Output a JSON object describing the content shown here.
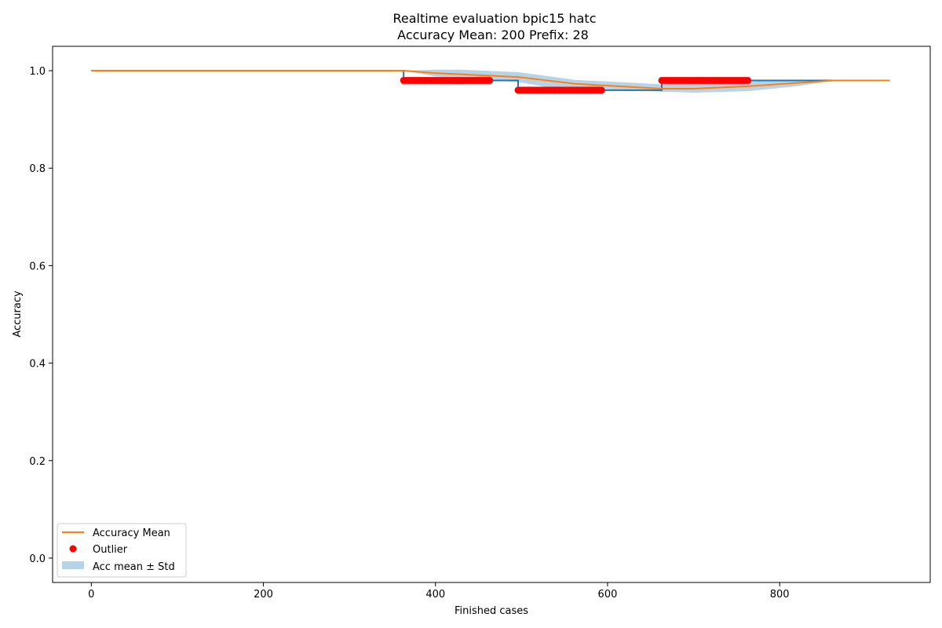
{
  "chart_data": {
    "type": "line",
    "title": "Realtime evaluation bpic15 hatc",
    "subtitle": "Accuracy Mean: 200 Prefix: 28",
    "xlabel": "Finished cases",
    "ylabel": "Accuracy",
    "xlim": [
      -45,
      975
    ],
    "ylim": [
      -0.05,
      1.05
    ],
    "xticks": [
      0,
      200,
      400,
      600,
      800
    ],
    "yticks": [
      0.0,
      0.2,
      0.4,
      0.6,
      0.8,
      1.0
    ],
    "xtick_labels": [
      "0",
      "200",
      "400",
      "600",
      "800"
    ],
    "ytick_labels": [
      "0.0",
      "0.2",
      "0.4",
      "0.6",
      "0.8",
      "1.0"
    ],
    "grid": false,
    "legend_position": "lower-left",
    "legend": [
      {
        "label": "Accuracy Mean",
        "kind": "line",
        "color": "#ff7f0e"
      },
      {
        "label": "Outlier",
        "kind": "marker",
        "color": "#ff0000"
      },
      {
        "label": "Acc mean ± Std",
        "kind": "patch",
        "color": "#b7d3e8"
      }
    ],
    "colors": {
      "accuracy": "#1f77b4",
      "mean": "#ff7f0e",
      "outlier": "#ff0000",
      "band": "#b7d3e8"
    },
    "series": [
      {
        "kind": "step",
        "x": [
          0,
          363,
          363,
          496,
          496,
          663,
          663,
          928
        ],
        "y": [
          1.0,
          1.0,
          0.98,
          0.98,
          0.96,
          0.96,
          0.98,
          0.98
        ]
      },
      {
        "name": "Accuracy Mean",
        "kind": "line",
        "x": [
          0,
          363,
          400,
          496,
          563,
          663,
          700,
          763,
          863,
          928
        ],
        "y": [
          1.0,
          1.0,
          0.995,
          0.987,
          0.973,
          0.963,
          0.963,
          0.968,
          0.98,
          0.98
        ]
      }
    ],
    "band": {
      "name": "Acc mean ± Std",
      "x": [
        363,
        400,
        430,
        496,
        530,
        563,
        600,
        663,
        700,
        763,
        820,
        863,
        928
      ],
      "upper": [
        1.0,
        1.002,
        1.002,
        0.997,
        0.989,
        0.981,
        0.978,
        0.972,
        0.974,
        0.978,
        0.98,
        0.98,
        0.98
      ],
      "lower": [
        1.0,
        0.988,
        0.984,
        0.977,
        0.966,
        0.965,
        0.962,
        0.957,
        0.955,
        0.958,
        0.968,
        0.98,
        0.98
      ]
    },
    "outliers": [
      {
        "x_start": 363,
        "x_end": 463,
        "y": 0.98,
        "count": 38
      },
      {
        "x_start": 496,
        "x_end": 593,
        "y": 0.96,
        "count": 38
      },
      {
        "x_start": 663,
        "x_end": 763,
        "y": 0.98,
        "count": 38
      }
    ]
  }
}
